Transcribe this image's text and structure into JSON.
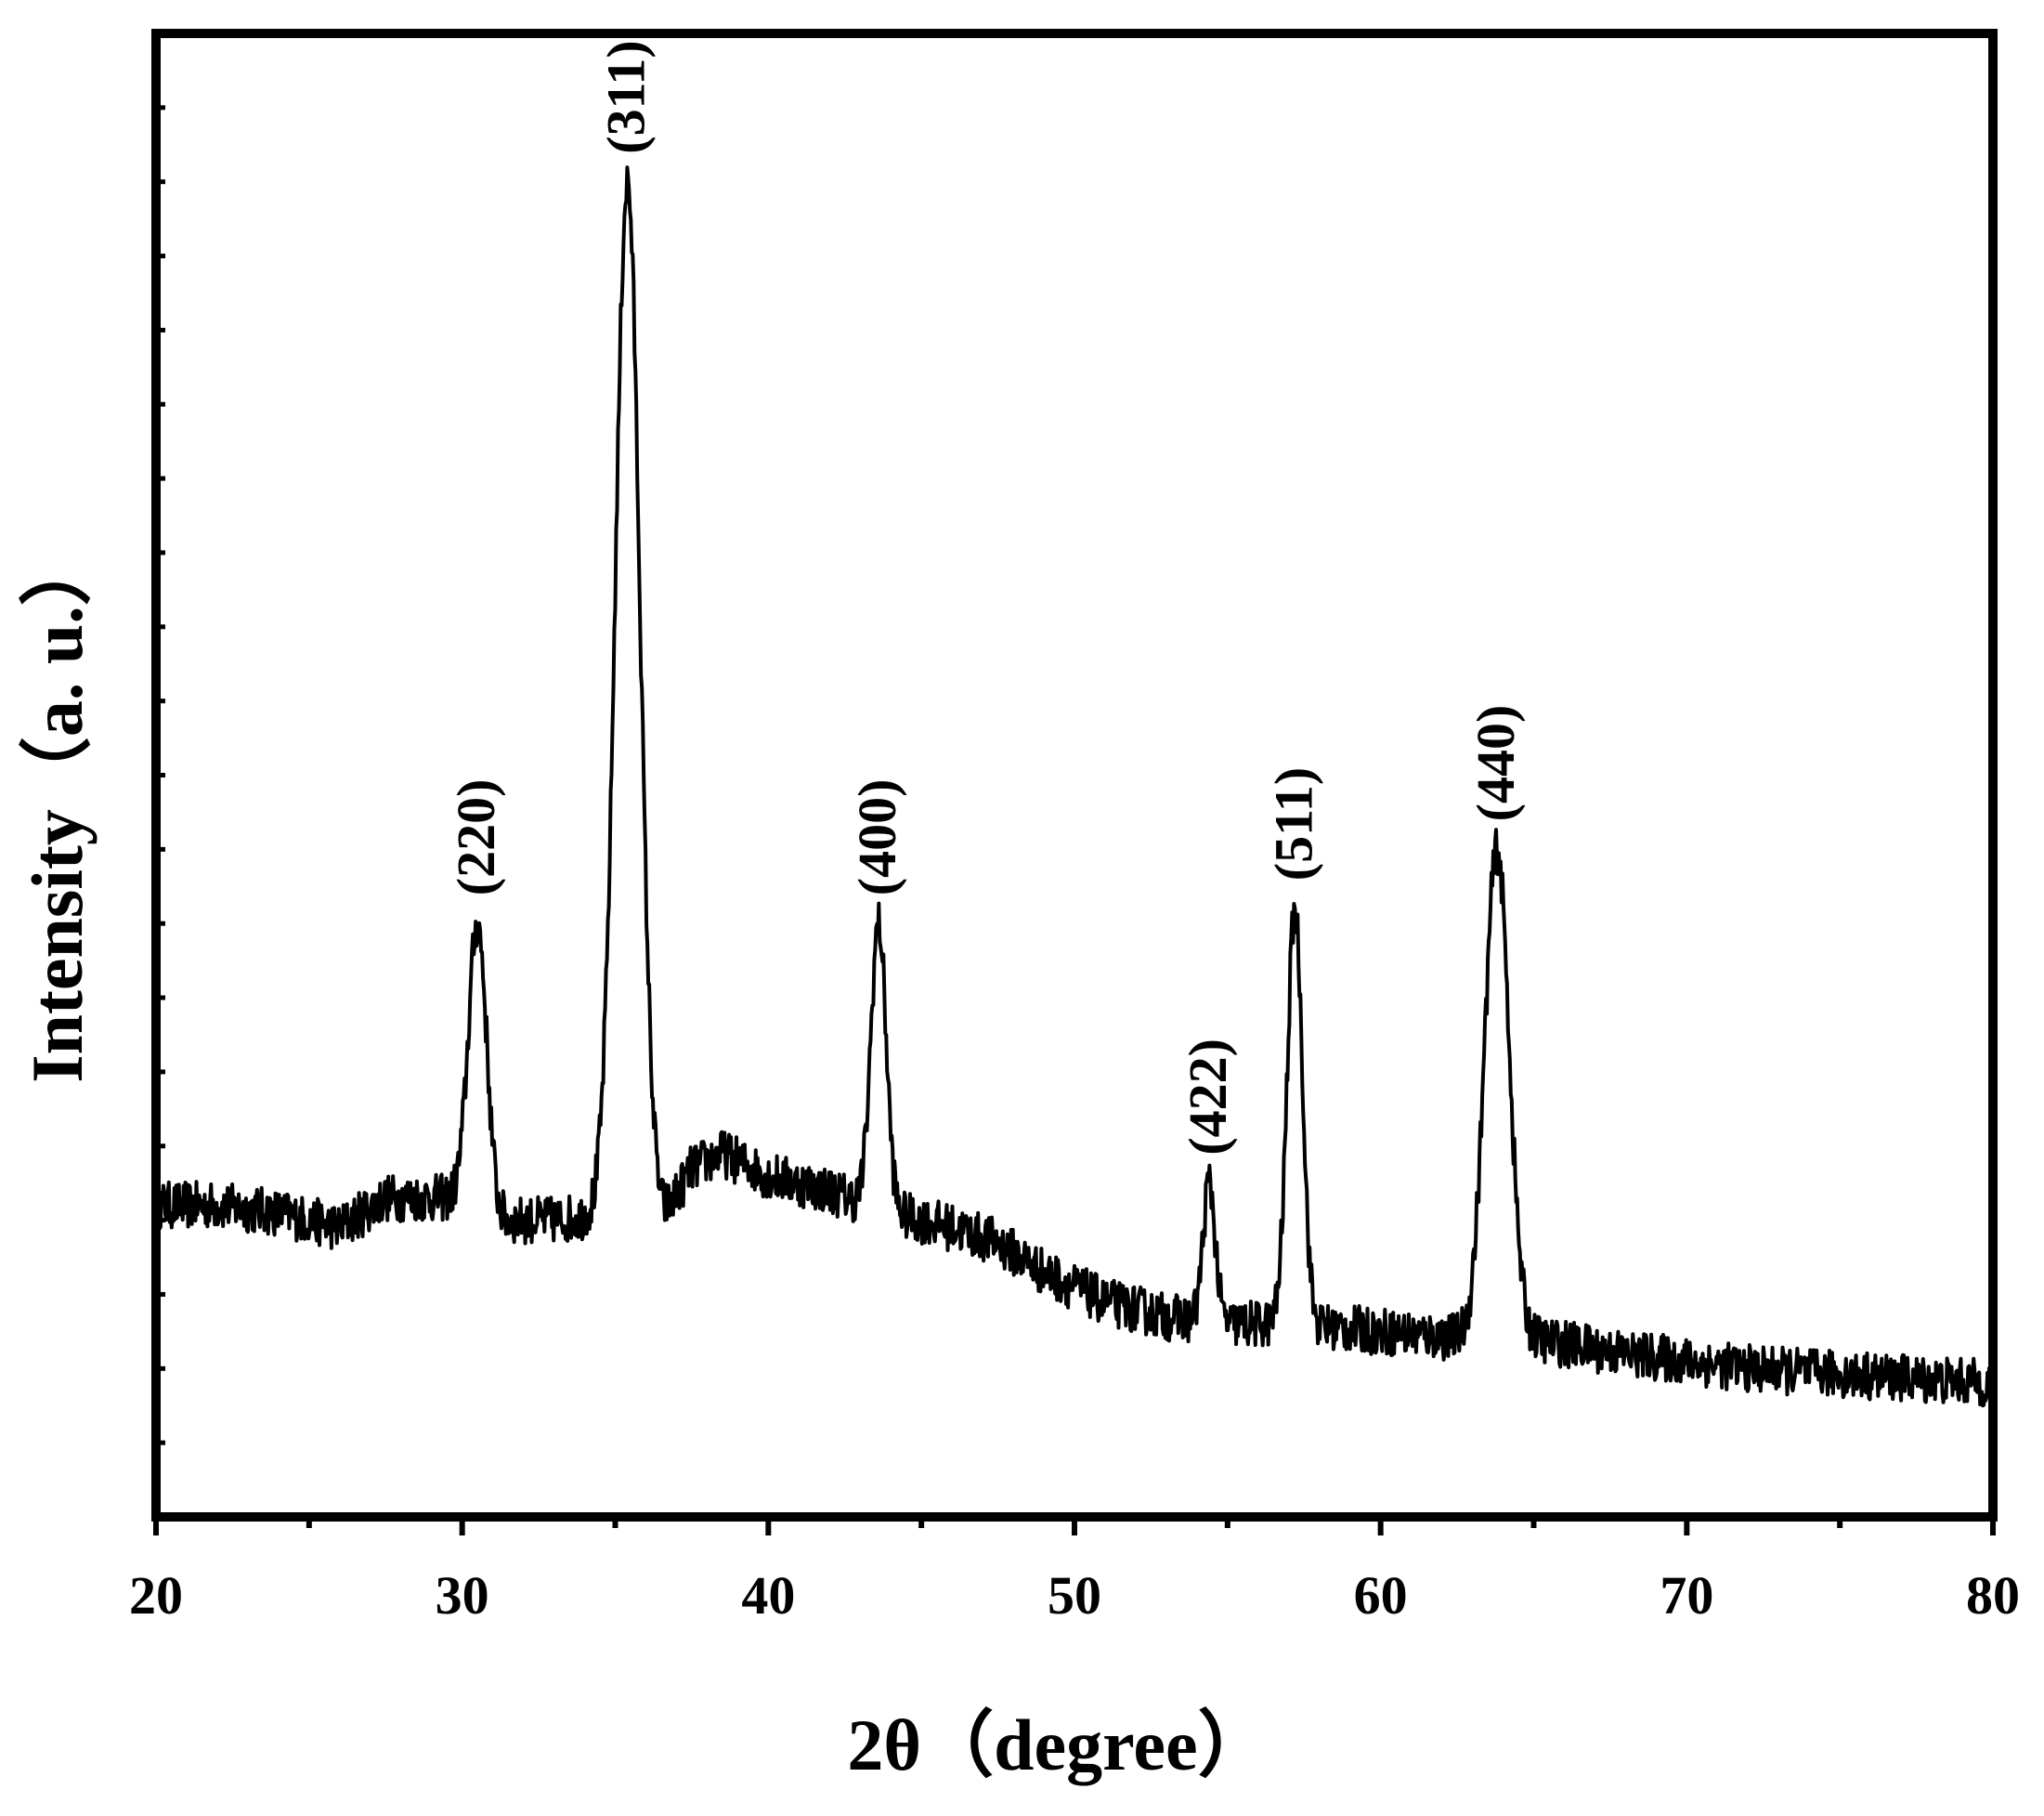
{
  "chart_data": {
    "type": "line",
    "title": "",
    "xlabel": "2θ（degree）",
    "ylabel": "Intensity（a. u.）",
    "xlim": [
      20,
      80
    ],
    "ylim": [
      0,
      100
    ],
    "y_ticks_labeled": false,
    "grid": false,
    "legend": "none",
    "x_ticks": [
      {
        "value": 20,
        "label": "20"
      },
      {
        "value": 30,
        "label": "30"
      },
      {
        "value": 40,
        "label": "40"
      },
      {
        "value": 50,
        "label": "50"
      },
      {
        "value": 60,
        "label": "60"
      },
      {
        "value": 70,
        "label": "70"
      },
      {
        "value": 80,
        "label": "80"
      }
    ],
    "series": [
      {
        "color": "#000000",
        "baseline": [
          [
            20,
            21
          ],
          [
            22,
            21
          ],
          [
            24,
            20.5
          ],
          [
            26,
            19.5
          ],
          [
            27.5,
            21.5
          ],
          [
            29,
            21.5
          ],
          [
            30,
            21.5
          ],
          [
            31,
            20
          ],
          [
            33,
            20
          ],
          [
            35,
            20.5
          ],
          [
            36.5,
            20
          ],
          [
            37.5,
            23.5
          ],
          [
            38.5,
            24.5
          ],
          [
            40,
            23
          ],
          [
            42,
            22
          ],
          [
            44,
            20.5
          ],
          [
            46,
            19.5
          ],
          [
            47.5,
            18.5
          ],
          [
            49,
            16.5
          ],
          [
            51,
            14.5
          ],
          [
            53,
            13.5
          ],
          [
            55,
            13
          ],
          [
            57,
            13
          ],
          [
            60,
            12.5
          ],
          [
            63,
            12
          ],
          [
            65,
            12
          ],
          [
            68,
            11
          ],
          [
            72,
            10
          ],
          [
            76,
            9.5
          ],
          [
            80,
            9
          ]
        ],
        "peaks": [
          {
            "x": 30.5,
            "y": 40,
            "width": 0.3,
            "label": "(220)"
          },
          {
            "x": 35.4,
            "y": 90,
            "width": 0.4,
            "label": "(311)"
          },
          {
            "x": 43.6,
            "y": 40,
            "width": 0.25,
            "label": "(400)"
          },
          {
            "x": 54.4,
            "y": 22.5,
            "width": 0.2,
            "label": "(422)"
          },
          {
            "x": 57.2,
            "y": 41,
            "width": 0.25,
            "label": "(511)"
          },
          {
            "x": 63.8,
            "y": 45,
            "width": 0.4,
            "label": "(440)"
          }
        ]
      }
    ]
  }
}
